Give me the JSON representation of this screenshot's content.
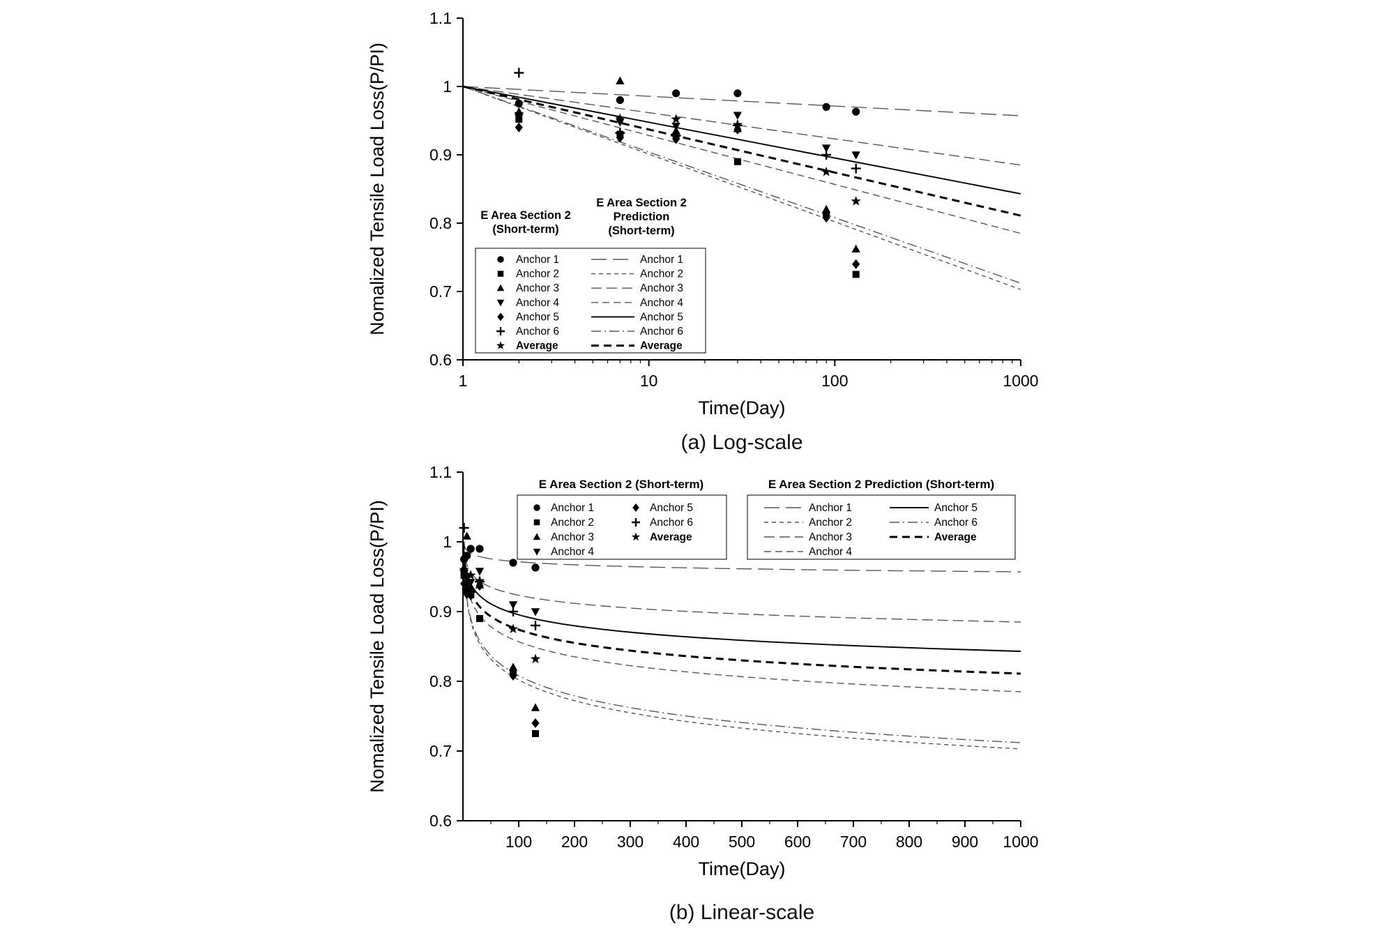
{
  "chart_data": {
    "type": "scatter",
    "xlabel": "Time(Day)",
    "ylabel": "Nomalized Tensile Load Loss(P/PI)",
    "ylim": [
      0.6,
      1.1
    ],
    "yticks": [
      0.6,
      0.7,
      0.8,
      0.9,
      1.0,
      1.1
    ],
    "ytick_labels": [
      "0.6",
      "0.7",
      "0.8",
      "0.9",
      "1",
      "1.1"
    ],
    "colors": {
      "marker": "#000000",
      "line_gray": "#555555",
      "line_black": "#000000"
    },
    "measured_series": [
      {
        "name": "Anchor 1",
        "marker": "circle",
        "x": [
          2,
          7,
          14,
          30,
          90,
          130
        ],
        "y": [
          0.975,
          0.98,
          0.99,
          0.99,
          0.97,
          0.963
        ]
      },
      {
        "name": "Anchor 2",
        "marker": "square",
        "x": [
          2,
          7,
          14,
          30,
          90,
          130
        ],
        "y": [
          0.952,
          0.93,
          0.928,
          0.89,
          0.812,
          0.725
        ]
      },
      {
        "name": "Anchor 3",
        "marker": "triangle-up",
        "x": [
          2,
          7,
          14,
          30,
          90,
          130
        ],
        "y": [
          0.963,
          1.008,
          0.935,
          0.938,
          0.82,
          0.762
        ]
      },
      {
        "name": "Anchor 4",
        "marker": "triangle-down",
        "x": [
          2,
          7,
          14,
          30,
          90,
          130
        ],
        "y": [
          0.955,
          0.948,
          0.942,
          0.958,
          0.91,
          0.9
        ]
      },
      {
        "name": "Anchor 5",
        "marker": "diamond",
        "x": [
          2,
          7,
          14,
          30,
          90,
          130
        ],
        "y": [
          0.94,
          0.925,
          0.923,
          0.937,
          0.808,
          0.74
        ]
      },
      {
        "name": "Anchor 6",
        "marker": "plus",
        "x": [
          2,
          7,
          14,
          30,
          90,
          130
        ],
        "y": [
          1.02,
          0.932,
          0.928,
          0.943,
          0.9,
          0.88
        ]
      },
      {
        "name": "Average",
        "marker": "star",
        "x": [
          2,
          7,
          14,
          30,
          90,
          130
        ],
        "y": [
          0.96,
          0.953,
          0.952,
          0.944,
          0.875,
          0.832
        ]
      }
    ],
    "prediction_series": [
      {
        "name": "Anchor 1",
        "line": "long-dash",
        "color": "#555555",
        "width": 1.4,
        "y_start": 1.0,
        "y_end": 0.957
      },
      {
        "name": "Anchor 2",
        "line": "short-dash",
        "color": "#555555",
        "width": 1.4,
        "y_start": 1.0,
        "y_end": 0.703
      },
      {
        "name": "Anchor 3",
        "line": "med-dash",
        "color": "#555555",
        "width": 1.4,
        "y_start": 1.0,
        "y_end": 0.885
      },
      {
        "name": "Anchor 4",
        "line": "dash",
        "color": "#555555",
        "width": 1.4,
        "y_start": 1.0,
        "y_end": 0.785
      },
      {
        "name": "Anchor 5",
        "line": "solid",
        "color": "#000000",
        "width": 1.9,
        "y_start": 1.0,
        "y_end": 0.843
      },
      {
        "name": "Anchor 6",
        "line": "dash-dot",
        "color": "#555555",
        "width": 1.4,
        "y_start": 1.0,
        "y_end": 0.712
      },
      {
        "name": "Average",
        "line": "bold-dash",
        "color": "#000000",
        "width": 3.0,
        "y_start": 1.0,
        "y_end": 0.811
      }
    ],
    "charts": [
      {
        "id": "log",
        "xscale": "log",
        "xlim": [
          1,
          1000
        ],
        "xticks": [
          1,
          10,
          100,
          1000
        ],
        "xtick_labels": [
          "1",
          "10",
          "100",
          "1000"
        ],
        "legend_measured_title": [
          "E Area Section 2",
          "(Short-term)"
        ],
        "legend_prediction_title": [
          "E Area Section 2",
          "Prediction",
          "(Short-term)"
        ],
        "caption": "(a)  Log-scale"
      },
      {
        "id": "linear",
        "xscale": "linear",
        "xlim": [
          0,
          1000
        ],
        "xticks": [
          100,
          200,
          300,
          400,
          500,
          600,
          700,
          800,
          900,
          1000
        ],
        "xtick_labels": [
          "100",
          "200",
          "300",
          "400",
          "500",
          "600",
          "700",
          "800",
          "900",
          "1000"
        ],
        "legend_measured_title": [
          "E Area Section 2 (Short-term)"
        ],
        "legend_prediction_title": [
          "E Area Section 2 Prediction (Short-term)"
        ],
        "caption": "(b)  Linear-scale"
      }
    ]
  }
}
